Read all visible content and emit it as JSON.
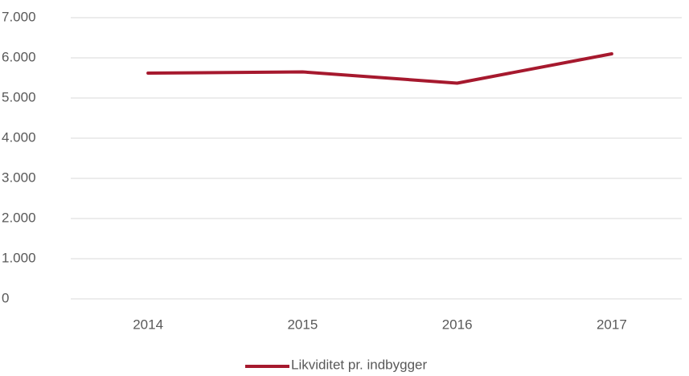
{
  "chart_data": {
    "type": "line",
    "categories": [
      "2014",
      "2015",
      "2016",
      "2017"
    ],
    "series": [
      {
        "name": "Likviditet pr. indbygger",
        "color": "#a6192e",
        "values": [
          5620,
          5650,
          5370,
          6100
        ]
      }
    ],
    "ylim": [
      0,
      7000
    ],
    "yticks": [
      0,
      {
        "value": 1000,
        "label": "1.000"
      },
      {
        "value": 2000,
        "label": "2.000"
      },
      {
        "value": 3000,
        "label": "3.000"
      },
      {
        "value": 4000,
        "label": "4.000"
      },
      {
        "value": 5000,
        "label": "5.000"
      },
      {
        "value": 6000,
        "label": "6.000"
      },
      {
        "value": 7000,
        "label": "7.000"
      }
    ],
    "grid": true,
    "legend": "bottom"
  }
}
